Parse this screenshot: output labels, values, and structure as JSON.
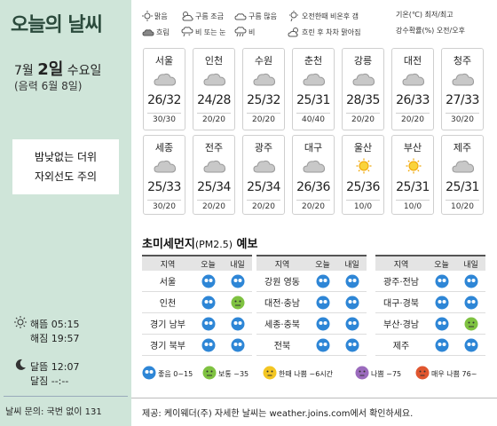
{
  "title": "오늘의 날씨",
  "date": {
    "month": "7월",
    "day": "2일",
    "weekday": "수요일",
    "lunar": "(음력 6월 8일)"
  },
  "notice": [
    "밤낮없는 더위",
    "자외선도 주의"
  ],
  "astro": {
    "sunrise": "해뜸 05:15",
    "sunset": "해짐 19:57",
    "moonrise": "달뜸 12:07",
    "moonset": "달짐 --:--"
  },
  "inquiry": "날씨 문의: 국번 없이 131",
  "legend_top": {
    "sunny": "맑음",
    "few_clouds": "구름 조금",
    "many_clouds": "구름 많음",
    "am_rain": "오전한때 비온후 갬",
    "cloudy": "흐림",
    "rain_snow": "비 또는 눈",
    "rain": "비",
    "cloudy_then_clear": "흐린 후 차차 맑아짐",
    "temp_note": "기온(℃) 최저/최고",
    "rain_note": "강수확률(%) 오전/오후"
  },
  "cities_row1": [
    {
      "name": "서울",
      "icon": "cloud-icon",
      "temp": "26/32",
      "rain": "30/30"
    },
    {
      "name": "인천",
      "icon": "cloud-icon",
      "temp": "24/28",
      "rain": "20/20"
    },
    {
      "name": "수원",
      "icon": "cloud-icon",
      "temp": "25/32",
      "rain": "20/20"
    },
    {
      "name": "춘천",
      "icon": "cloud-icon",
      "temp": "25/31",
      "rain": "40/40"
    },
    {
      "name": "강릉",
      "icon": "cloud-icon",
      "temp": "28/35",
      "rain": "20/20"
    },
    {
      "name": "대전",
      "icon": "cloud-icon",
      "temp": "26/33",
      "rain": "20/20"
    },
    {
      "name": "청주",
      "icon": "cloud-icon",
      "temp": "27/33",
      "rain": "30/20"
    }
  ],
  "cities_row2": [
    {
      "name": "세종",
      "icon": "cloud-icon",
      "temp": "25/33",
      "rain": "30/20"
    },
    {
      "name": "전주",
      "icon": "cloud-icon",
      "temp": "25/34",
      "rain": "20/20"
    },
    {
      "name": "광주",
      "icon": "cloud-icon",
      "temp": "25/34",
      "rain": "20/20"
    },
    {
      "name": "대구",
      "icon": "cloud-icon",
      "temp": "26/36",
      "rain": "20/20"
    },
    {
      "name": "울산",
      "icon": "sun-icon",
      "temp": "25/36",
      "rain": "10/0"
    },
    {
      "name": "부산",
      "icon": "sun-icon",
      "temp": "25/31",
      "rain": "10/0"
    },
    {
      "name": "제주",
      "icon": "cloud-icon",
      "temp": "25/31",
      "rain": "10/20"
    }
  ],
  "dust": {
    "title": "초미세먼지",
    "unit": "(PM2.5)",
    "suffix": " 예보",
    "headers": {
      "region": "지역",
      "today": "오늘",
      "tomorrow": "내일"
    },
    "tables": [
      [
        {
          "region": "서울",
          "today": "good",
          "tomorrow": "good"
        },
        {
          "region": "인천",
          "today": "good",
          "tomorrow": "normal"
        },
        {
          "region": "경기 남부",
          "today": "good",
          "tomorrow": "good"
        },
        {
          "region": "경기 북부",
          "today": "good",
          "tomorrow": "good"
        }
      ],
      [
        {
          "region": "강원 영동",
          "today": "good",
          "tomorrow": "good"
        },
        {
          "region": "대전·충남",
          "today": "good",
          "tomorrow": "good"
        },
        {
          "region": "세종·충북",
          "today": "good",
          "tomorrow": "good"
        },
        {
          "region": "전북",
          "today": "good",
          "tomorrow": "good"
        }
      ],
      [
        {
          "region": "광주·전남",
          "today": "good",
          "tomorrow": "good"
        },
        {
          "region": "대구·경북",
          "today": "good",
          "tomorrow": "good"
        },
        {
          "region": "부산·경남",
          "today": "good",
          "tomorrow": "normal"
        },
        {
          "region": "제주",
          "today": "good",
          "tomorrow": "good"
        }
      ]
    ],
    "legend": {
      "good": "좋음 0~15",
      "normal": "보통 ~35",
      "temp_bad": "한때 나쁨 ~6시간",
      "bad": "나쁨 ~75",
      "very_bad": "매우 나쁨 76~"
    },
    "colors": {
      "good": "#2e86d6",
      "normal": "#7fc241",
      "temp_bad": "#f3c623",
      "bad": "#9b6bbd",
      "very_bad": "#e0562f"
    }
  },
  "footer": "제공: 케이웨더(주) 자세한 날씨는 weather.joins.com에서 확인하세요."
}
